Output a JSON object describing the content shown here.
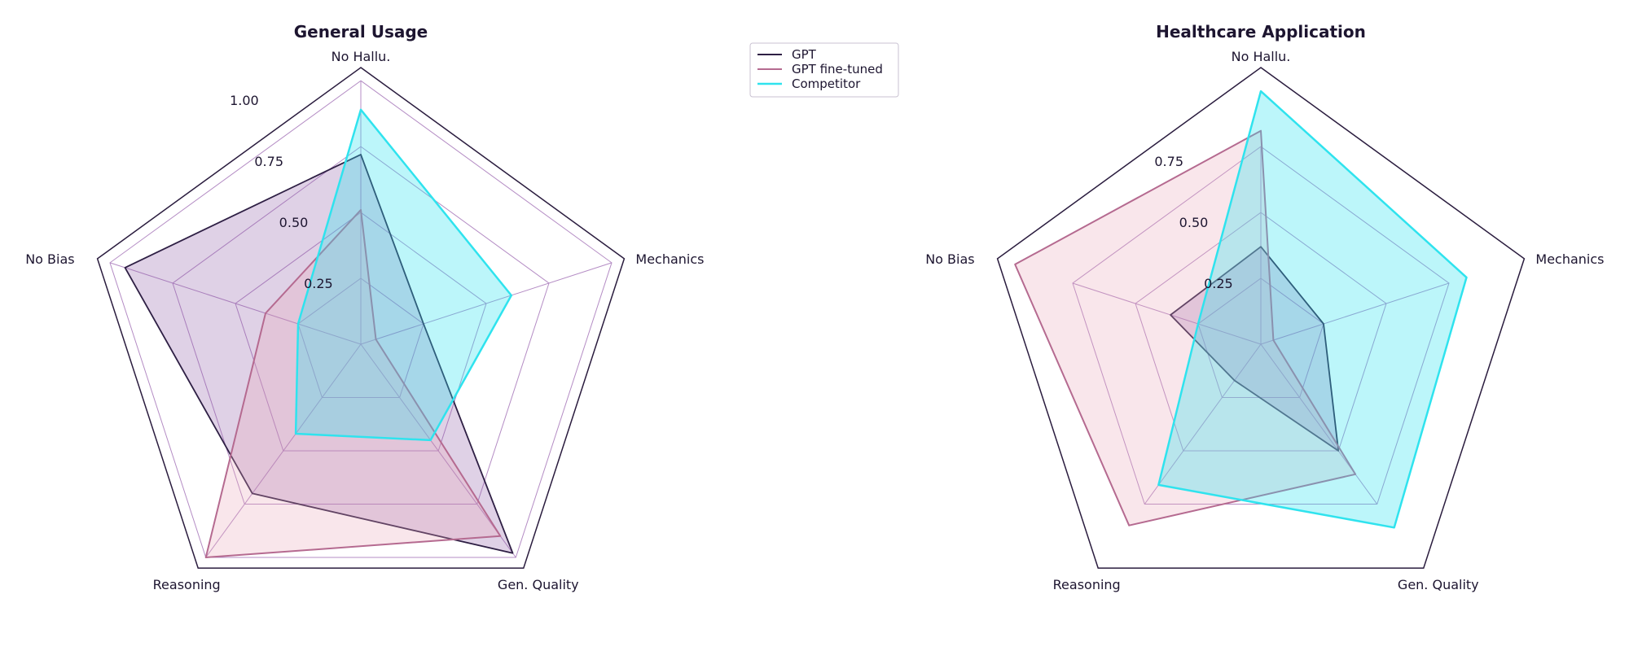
{
  "legend": {
    "entries": [
      {
        "name": "GPT",
        "color": "#2e1f44"
      },
      {
        "name": "GPT fine-tuned",
        "color": "#b56a90"
      },
      {
        "name": "Competitor",
        "color": "#2fe3ee"
      }
    ]
  },
  "chart_data": [
    {
      "type": "radar",
      "title": "General Usage",
      "axes": [
        "No Hallu.",
        "Mechanics",
        "Gen. Quality",
        "Reasoning",
        "No Bias"
      ],
      "rticks": [
        0.25,
        0.5,
        0.75,
        1.0
      ],
      "rtick_labels": [
        "0.25",
        "0.50",
        "0.75",
        "1.00"
      ],
      "rlim": [
        0,
        1.05
      ],
      "series": [
        {
          "name": "GPT",
          "values": [
            0.72,
            0.25,
            0.98,
            0.7,
            0.94
          ]
        },
        {
          "name": "GPT fine-tuned",
          "values": [
            0.51,
            0.06,
            0.9,
            1.0,
            0.38
          ]
        },
        {
          "name": "Competitor",
          "values": [
            0.89,
            0.6,
            0.45,
            0.42,
            0.25
          ]
        }
      ]
    },
    {
      "type": "radar",
      "title": "Healthcare Application",
      "axes": [
        "No Hallu.",
        "Mechanics",
        "Gen. Quality",
        "Reasoning",
        "No Bias"
      ],
      "rticks": [
        0.25,
        0.5,
        0.75
      ],
      "rtick_labels": [
        "0.25",
        "0.50",
        "0.75"
      ],
      "rlim": [
        0,
        1.05
      ],
      "series": [
        {
          "name": "GPT",
          "values": [
            0.37,
            0.25,
            0.5,
            0.17,
            0.36
          ]
        },
        {
          "name": "GPT fine-tuned",
          "values": [
            0.81,
            0.05,
            0.61,
            0.85,
            0.98
          ]
        },
        {
          "name": "Competitor",
          "values": [
            0.96,
            0.82,
            0.86,
            0.66,
            0.25
          ]
        }
      ]
    }
  ]
}
